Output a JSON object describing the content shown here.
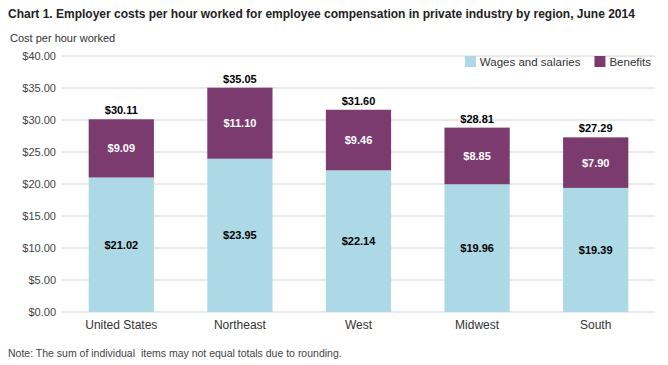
{
  "chart_data": {
    "type": "bar",
    "stacked": true,
    "title": "Chart 1. Employer costs per hour worked for employee compensation in private industry by region, June 2014",
    "y_label": "Cost per hour worked",
    "annotations": [
      "Note: The sum of individual  items may not equal totals due to rounding."
    ],
    "categories": [
      "United States",
      "Northeast",
      "West",
      "Midwest",
      "South"
    ],
    "series": [
      {
        "name": "Wages and salaries",
        "color": "#add8e6",
        "values": [
          21.02,
          23.95,
          22.14,
          19.96,
          19.39
        ],
        "value_labels": [
          "$21.02",
          "$23.95",
          "$22.14",
          "$19.96",
          "$19.39"
        ]
      },
      {
        "name": "Benefits",
        "color": "#7b3b6e",
        "values": [
          9.09,
          11.1,
          9.46,
          8.85,
          7.9
        ],
        "value_labels": [
          "$9.09",
          "$11.10",
          "$9.46",
          "$8.85",
          "$7.90"
        ]
      }
    ],
    "totals": [
      30.11,
      35.05,
      31.6,
      28.81,
      27.29
    ],
    "total_labels": [
      "$30.11",
      "$35.05",
      "$31.60",
      "$28.81",
      "$27.29"
    ],
    "ylim": [
      0,
      40
    ],
    "yticks": [
      {
        "value": 0,
        "label": "$0.00"
      },
      {
        "value": 5,
        "label": "$5.00"
      },
      {
        "value": 10,
        "label": "$10.00"
      },
      {
        "value": 15,
        "label": "$15.00"
      },
      {
        "value": 20,
        "label": "$20.00"
      },
      {
        "value": 25,
        "label": "$25.00"
      },
      {
        "value": 30,
        "label": "$30.00"
      },
      {
        "value": 35,
        "label": "$35.00"
      },
      {
        "value": 40,
        "label": "$40.00"
      }
    ],
    "grid": true,
    "data_labels": true,
    "legend": "upper right"
  }
}
